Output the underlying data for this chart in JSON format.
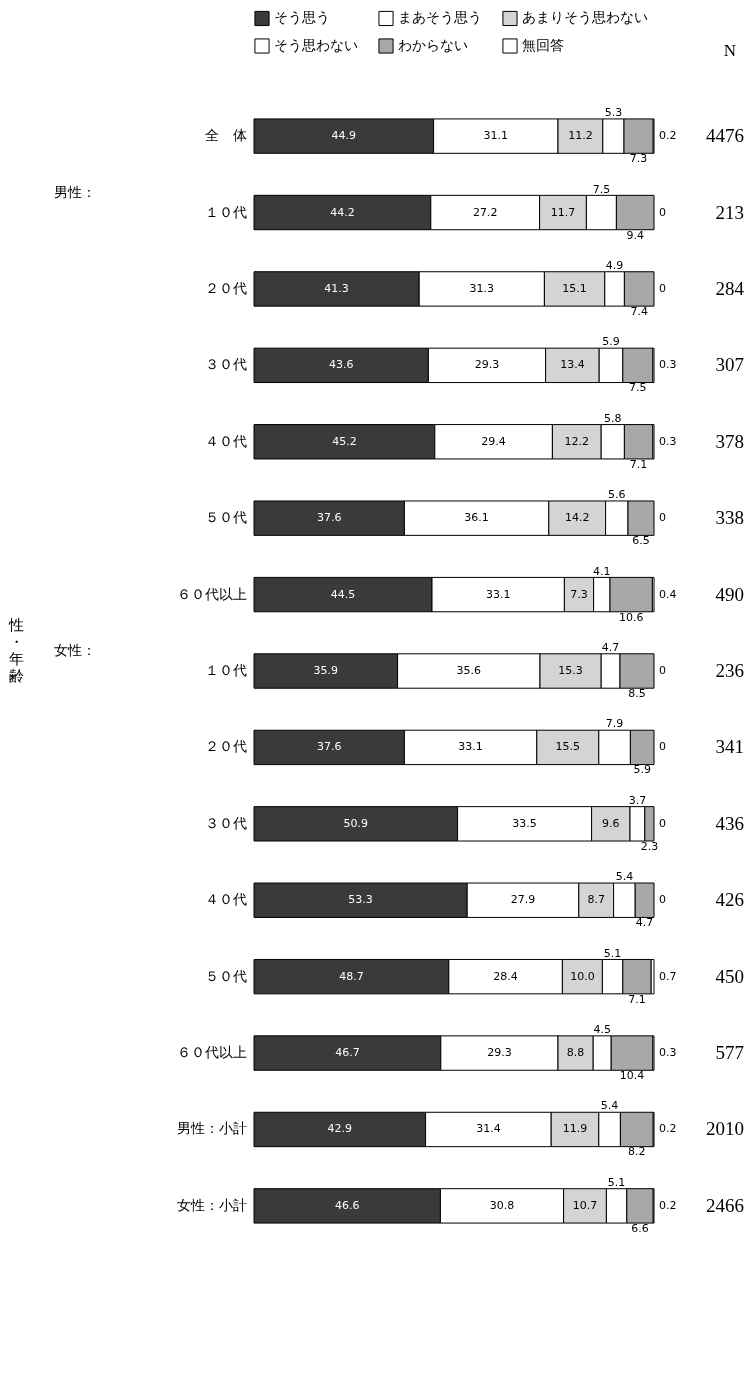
{
  "chart_data": {
    "type": "bar",
    "orientation": "horizontal",
    "stacked": true,
    "data_labels": true,
    "legend": "top",
    "tick_labels": "y",
    "categories": [
      "全　体",
      "１０代",
      "２０代",
      "３０代",
      "４０代",
      "５０代",
      "６０代以上",
      "１０代",
      "２０代",
      "３０代",
      "４０代",
      "５０代",
      "６０代以上",
      "男性：小計",
      "女性：小計"
    ],
    "series": [
      {
        "name": "そう思う",
        "color": "#3a3a3a",
        "values": [
          44.9,
          44.2,
          41.3,
          43.6,
          45.2,
          37.6,
          44.5,
          35.9,
          37.6,
          50.9,
          53.3,
          48.7,
          46.7,
          42.9,
          46.6
        ]
      },
      {
        "name": "まあそう思う",
        "color": "#ffffff",
        "values": [
          31.1,
          27.2,
          31.3,
          29.3,
          29.4,
          36.1,
          33.1,
          35.6,
          33.1,
          33.5,
          27.9,
          28.4,
          29.3,
          31.4,
          30.8
        ]
      },
      {
        "name": "あまりそう思わない",
        "color": "#d4d4d4",
        "values": [
          11.2,
          11.7,
          15.1,
          13.4,
          12.2,
          14.2,
          7.3,
          15.3,
          15.5,
          9.6,
          8.7,
          10.0,
          8.8,
          11.9,
          10.7
        ],
        "value_labels": [
          "11.2",
          "11.7",
          "15.1",
          "13.4",
          "12.2",
          "14.2",
          "7.3",
          "15.3",
          "15.5",
          "9.6",
          "8.7",
          "10.0",
          "8.8",
          "11.9",
          "10.7"
        ]
      },
      {
        "name": "そう思わない",
        "color": "#ffffff",
        "values": [
          5.3,
          7.5,
          4.9,
          5.9,
          5.8,
          5.6,
          4.1,
          4.7,
          7.9,
          3.7,
          5.4,
          5.1,
          4.5,
          5.4,
          5.1
        ]
      },
      {
        "name": "わからない",
        "color": "#a8a8a8",
        "values": [
          7.3,
          9.4,
          7.4,
          7.5,
          7.1,
          6.5,
          10.6,
          8.5,
          5.9,
          2.3,
          4.7,
          7.1,
          10.4,
          8.2,
          6.6
        ]
      },
      {
        "name": "無回答",
        "color": "#ffffff",
        "values": [
          0.2,
          0,
          0,
          0.3,
          0.3,
          0,
          0.4,
          0,
          0,
          0,
          0,
          0.7,
          0.3,
          0.2,
          0.2
        ]
      }
    ],
    "annotations": [
      "N",
      "4476",
      "213",
      "284",
      "307",
      "378",
      "338",
      "490",
      "236",
      "341",
      "436",
      "426",
      "450",
      "577",
      "2010",
      "2466",
      "男性：",
      "女性：",
      "性・年齢"
    ]
  }
}
